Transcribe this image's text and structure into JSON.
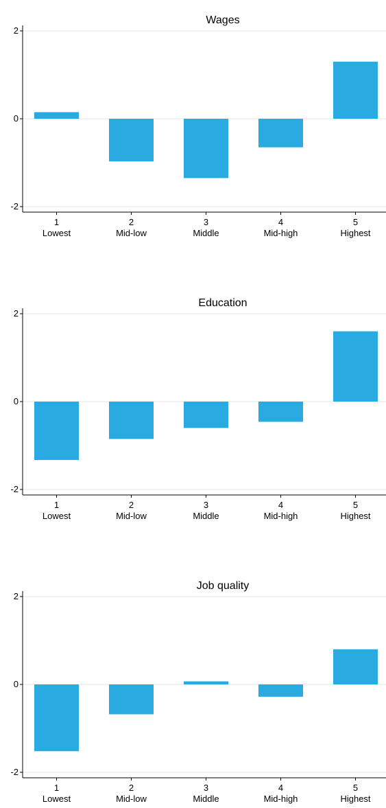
{
  "colors": {
    "bar": "#29abe2",
    "grid": "#e6e6e6",
    "axis": "#000000"
  },
  "chart_data": [
    {
      "type": "bar",
      "title": "Wages",
      "categories": [
        "1\nLowest",
        "2\nMid-low",
        "3\nMiddle",
        "4\nMid-high",
        "5\nHighest"
      ],
      "values": [
        0.15,
        -0.97,
        -1.35,
        -0.65,
        1.3
      ],
      "ylim": [
        -2,
        2
      ],
      "yticks": [
        -2,
        0,
        2
      ],
      "grid": true
    },
    {
      "type": "bar",
      "title": "Education",
      "categories": [
        "1\nLowest",
        "2\nMid-low",
        "3\nMiddle",
        "4\nMid-high",
        "5\nHighest"
      ],
      "values": [
        -1.33,
        -0.85,
        -0.6,
        -0.46,
        1.6
      ],
      "ylim": [
        -2,
        2
      ],
      "yticks": [
        -2,
        0,
        2
      ],
      "grid": true
    },
    {
      "type": "bar",
      "title": "Job quality",
      "categories": [
        "1\nLowest",
        "2\nMid-low",
        "3\nMiddle",
        "4\nMid-high",
        "5\nHighest"
      ],
      "values": [
        -1.52,
        -0.68,
        0.07,
        -0.28,
        0.8
      ],
      "ylim": [
        -2,
        2
      ],
      "yticks": [
        -2,
        0,
        2
      ],
      "grid": true
    }
  ]
}
